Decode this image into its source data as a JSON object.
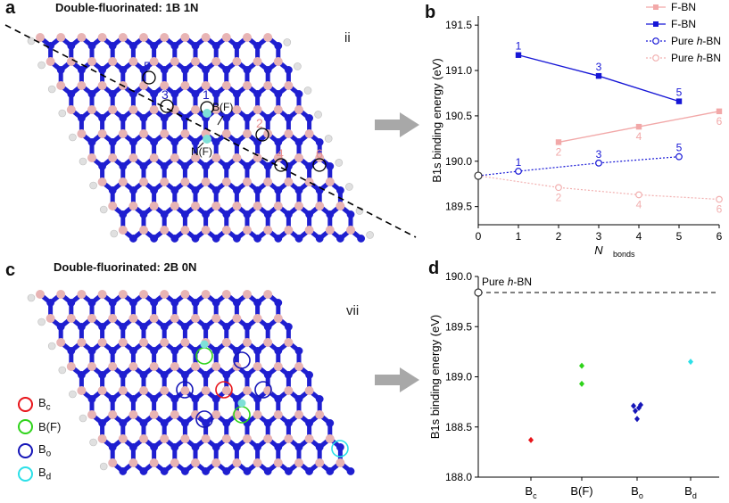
{
  "panels": {
    "a": {
      "label": "a",
      "title": "Double-fluorinated: 1B 1N",
      "roman": "ii",
      "site_labels": [
        "5",
        "3",
        "1",
        "2",
        "4",
        "6"
      ],
      "atom_labels": {
        "bf": "B(F)",
        "nf": "N(F)"
      }
    },
    "b": {
      "label": "b"
    },
    "c": {
      "label": "c",
      "title": "Double-fluorinated: 2B 0N",
      "roman": "vii",
      "legend": [
        {
          "base": "B",
          "sub": "c",
          "color": "#e8151b"
        },
        {
          "base": "B(F)",
          "sub": "",
          "color": "#2fd31b"
        },
        {
          "base": "B",
          "sub": "o",
          "color": "#1616b8"
        },
        {
          "base": "B",
          "sub": "d",
          "color": "#2ce0e8"
        }
      ]
    },
    "d": {
      "label": "d"
    }
  },
  "colors": {
    "boron": "#e8b4b4",
    "nitrogen": "#1f1fd0",
    "fluorine": "#7fe0d8",
    "hydrogen": "#e0e0e0",
    "fbn_b": "#1616d6",
    "fbn_pink": "#f2a8a8",
    "pure_b": "#1616d6",
    "pure_pink": "#f2b0b0"
  },
  "chart_data": [
    {
      "type": "line",
      "ylabel": "B1s binding energy (eV)",
      "xlabel": "N",
      "xlabel_sub": "bonds",
      "xlim": [
        0,
        6
      ],
      "ylim": [
        189.3,
        191.6
      ],
      "xticks": [
        0,
        1,
        2,
        3,
        4,
        5,
        6
      ],
      "yticks": [
        "189.5",
        "190.0",
        "190.5",
        "191.0",
        "191.5"
      ],
      "origin_point": {
        "x": 0,
        "y": 189.84
      },
      "series": [
        {
          "name": "F-BN",
          "style": "solid-square",
          "color": "#f2a8a8",
          "x": [
            2,
            4,
            6
          ],
          "values": [
            190.21,
            190.38,
            190.55
          ],
          "labels": [
            "2",
            "4",
            "6"
          ]
        },
        {
          "name": "F-BN",
          "style": "solid-square",
          "color": "#1616d6",
          "x": [
            1,
            3,
            5
          ],
          "values": [
            191.17,
            190.94,
            190.66
          ],
          "labels": [
            "1",
            "3",
            "5"
          ]
        },
        {
          "name": "Pure h-BN",
          "style": "dotted-circle",
          "color": "#1616d6",
          "x": [
            1,
            3,
            5
          ],
          "values": [
            189.89,
            189.98,
            190.05
          ],
          "labels": [
            "1",
            "3",
            "5"
          ]
        },
        {
          "name": "Pure h-BN",
          "style": "dotted-circle",
          "color": "#f2b0b0",
          "x": [
            2,
            4,
            6
          ],
          "values": [
            189.71,
            189.63,
            189.58
          ],
          "labels": [
            "2",
            "4",
            "6"
          ]
        }
      ]
    },
    {
      "type": "scatter",
      "ylabel": "B1s binding energy (eV)",
      "ylim": [
        188.0,
        190.0
      ],
      "yticks": [
        "188.0",
        "188.5",
        "189.0",
        "189.5",
        "190.0"
      ],
      "categories": [
        {
          "base": "B",
          "sub": "c"
        },
        {
          "base": "B(F)",
          "sub": ""
        },
        {
          "base": "B",
          "sub": "o"
        },
        {
          "base": "B",
          "sub": "d"
        }
      ],
      "reference": {
        "label": "Pure ",
        "italic": "h",
        "suffix": "-BN",
        "value": 189.84
      },
      "points": [
        {
          "cat": 0,
          "dx": 0,
          "value": 188.37,
          "color": "#e8151b"
        },
        {
          "cat": 1,
          "dx": 0,
          "value": 189.11,
          "color": "#2fd31b"
        },
        {
          "cat": 1,
          "dx": 0,
          "value": 188.93,
          "color": "#2fd31b"
        },
        {
          "cat": 2,
          "dx": -0.04,
          "value": 188.71,
          "color": "#1616b8"
        },
        {
          "cat": 2,
          "dx": 0.04,
          "value": 188.72,
          "color": "#1616b8"
        },
        {
          "cat": 2,
          "dx": -0.02,
          "value": 188.66,
          "color": "#1616b8"
        },
        {
          "cat": 2,
          "dx": 0.02,
          "value": 188.69,
          "color": "#1616b8"
        },
        {
          "cat": 2,
          "dx": 0,
          "value": 188.58,
          "color": "#1616b8"
        },
        {
          "cat": 3,
          "dx": 0,
          "value": 189.15,
          "color": "#2ce0e8"
        }
      ]
    }
  ]
}
